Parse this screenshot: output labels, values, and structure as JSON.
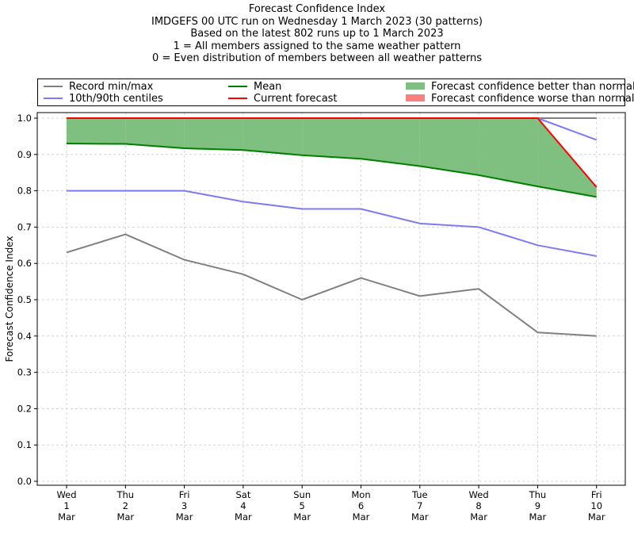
{
  "titles": {
    "line1": "Forecast Confidence Index",
    "line2": "IMDGEFS 00 UTC run on Wednesday 1 March 2023 (30 patterns)",
    "line3": "Based on the latest 802 runs up to 1 March 2023",
    "line4": "1 = All members assigned to the same weather pattern",
    "line5": "0 = Even distribution of members between all weather patterns"
  },
  "legend": {
    "record": "Record min/max",
    "centiles": "10th/90th centiles",
    "mean": "Mean",
    "current": "Current forecast",
    "better": "Forecast confidence better than normal",
    "worse": "Forecast confidence worse than normal"
  },
  "colors": {
    "record": "#808080",
    "centiles": "#7b7bf7",
    "mean": "#008000",
    "current": "#ff0000",
    "better_fill": "#7fbf7f",
    "worse_fill": "#f78080"
  },
  "chart_data": {
    "type": "line",
    "ylabel": "Forecast Confidence Index",
    "ylim": [
      0.0,
      1.0
    ],
    "yticks": [
      "0.0",
      "0.1",
      "0.2",
      "0.3",
      "0.4",
      "0.5",
      "0.6",
      "0.7",
      "0.8",
      "0.9",
      "1.0"
    ],
    "grid": true,
    "legend_position": "top",
    "categories": [
      [
        "Wed",
        "1",
        "Mar"
      ],
      [
        "Thu",
        "2",
        "Mar"
      ],
      [
        "Fri",
        "3",
        "Mar"
      ],
      [
        "Sat",
        "4",
        "Mar"
      ],
      [
        "Sun",
        "5",
        "Mar"
      ],
      [
        "Mon",
        "6",
        "Mar"
      ],
      [
        "Tue",
        "7",
        "Mar"
      ],
      [
        "Wed",
        "8",
        "Mar"
      ],
      [
        "Thu",
        "9",
        "Mar"
      ],
      [
        "Fri",
        "10",
        "Mar"
      ]
    ],
    "series": [
      {
        "name": "Record min/max",
        "key": "record_max",
        "values": [
          1.0,
          1.0,
          1.0,
          1.0,
          1.0,
          1.0,
          1.0,
          1.0,
          1.0,
          1.0
        ]
      },
      {
        "name": "Record min/max",
        "key": "record_min",
        "values": [
          0.63,
          0.68,
          0.61,
          0.57,
          0.5,
          0.56,
          0.51,
          0.53,
          0.41,
          0.4
        ]
      },
      {
        "name": "10th/90th centiles",
        "key": "p90",
        "values": [
          1.0,
          1.0,
          1.0,
          1.0,
          1.0,
          1.0,
          1.0,
          1.0,
          1.0,
          0.94
        ]
      },
      {
        "name": "10th/90th centiles",
        "key": "p10",
        "values": [
          0.8,
          0.8,
          0.8,
          0.77,
          0.75,
          0.75,
          0.71,
          0.7,
          0.65,
          0.62
        ]
      },
      {
        "name": "Mean",
        "key": "mean",
        "values": [
          0.93,
          0.929,
          0.917,
          0.912,
          0.898,
          0.888,
          0.868,
          0.843,
          0.812,
          0.783
        ]
      },
      {
        "name": "Current forecast",
        "key": "current",
        "values": [
          1.0,
          1.0,
          1.0,
          1.0,
          1.0,
          1.0,
          1.0,
          1.0,
          1.0,
          0.81
        ]
      }
    ]
  }
}
